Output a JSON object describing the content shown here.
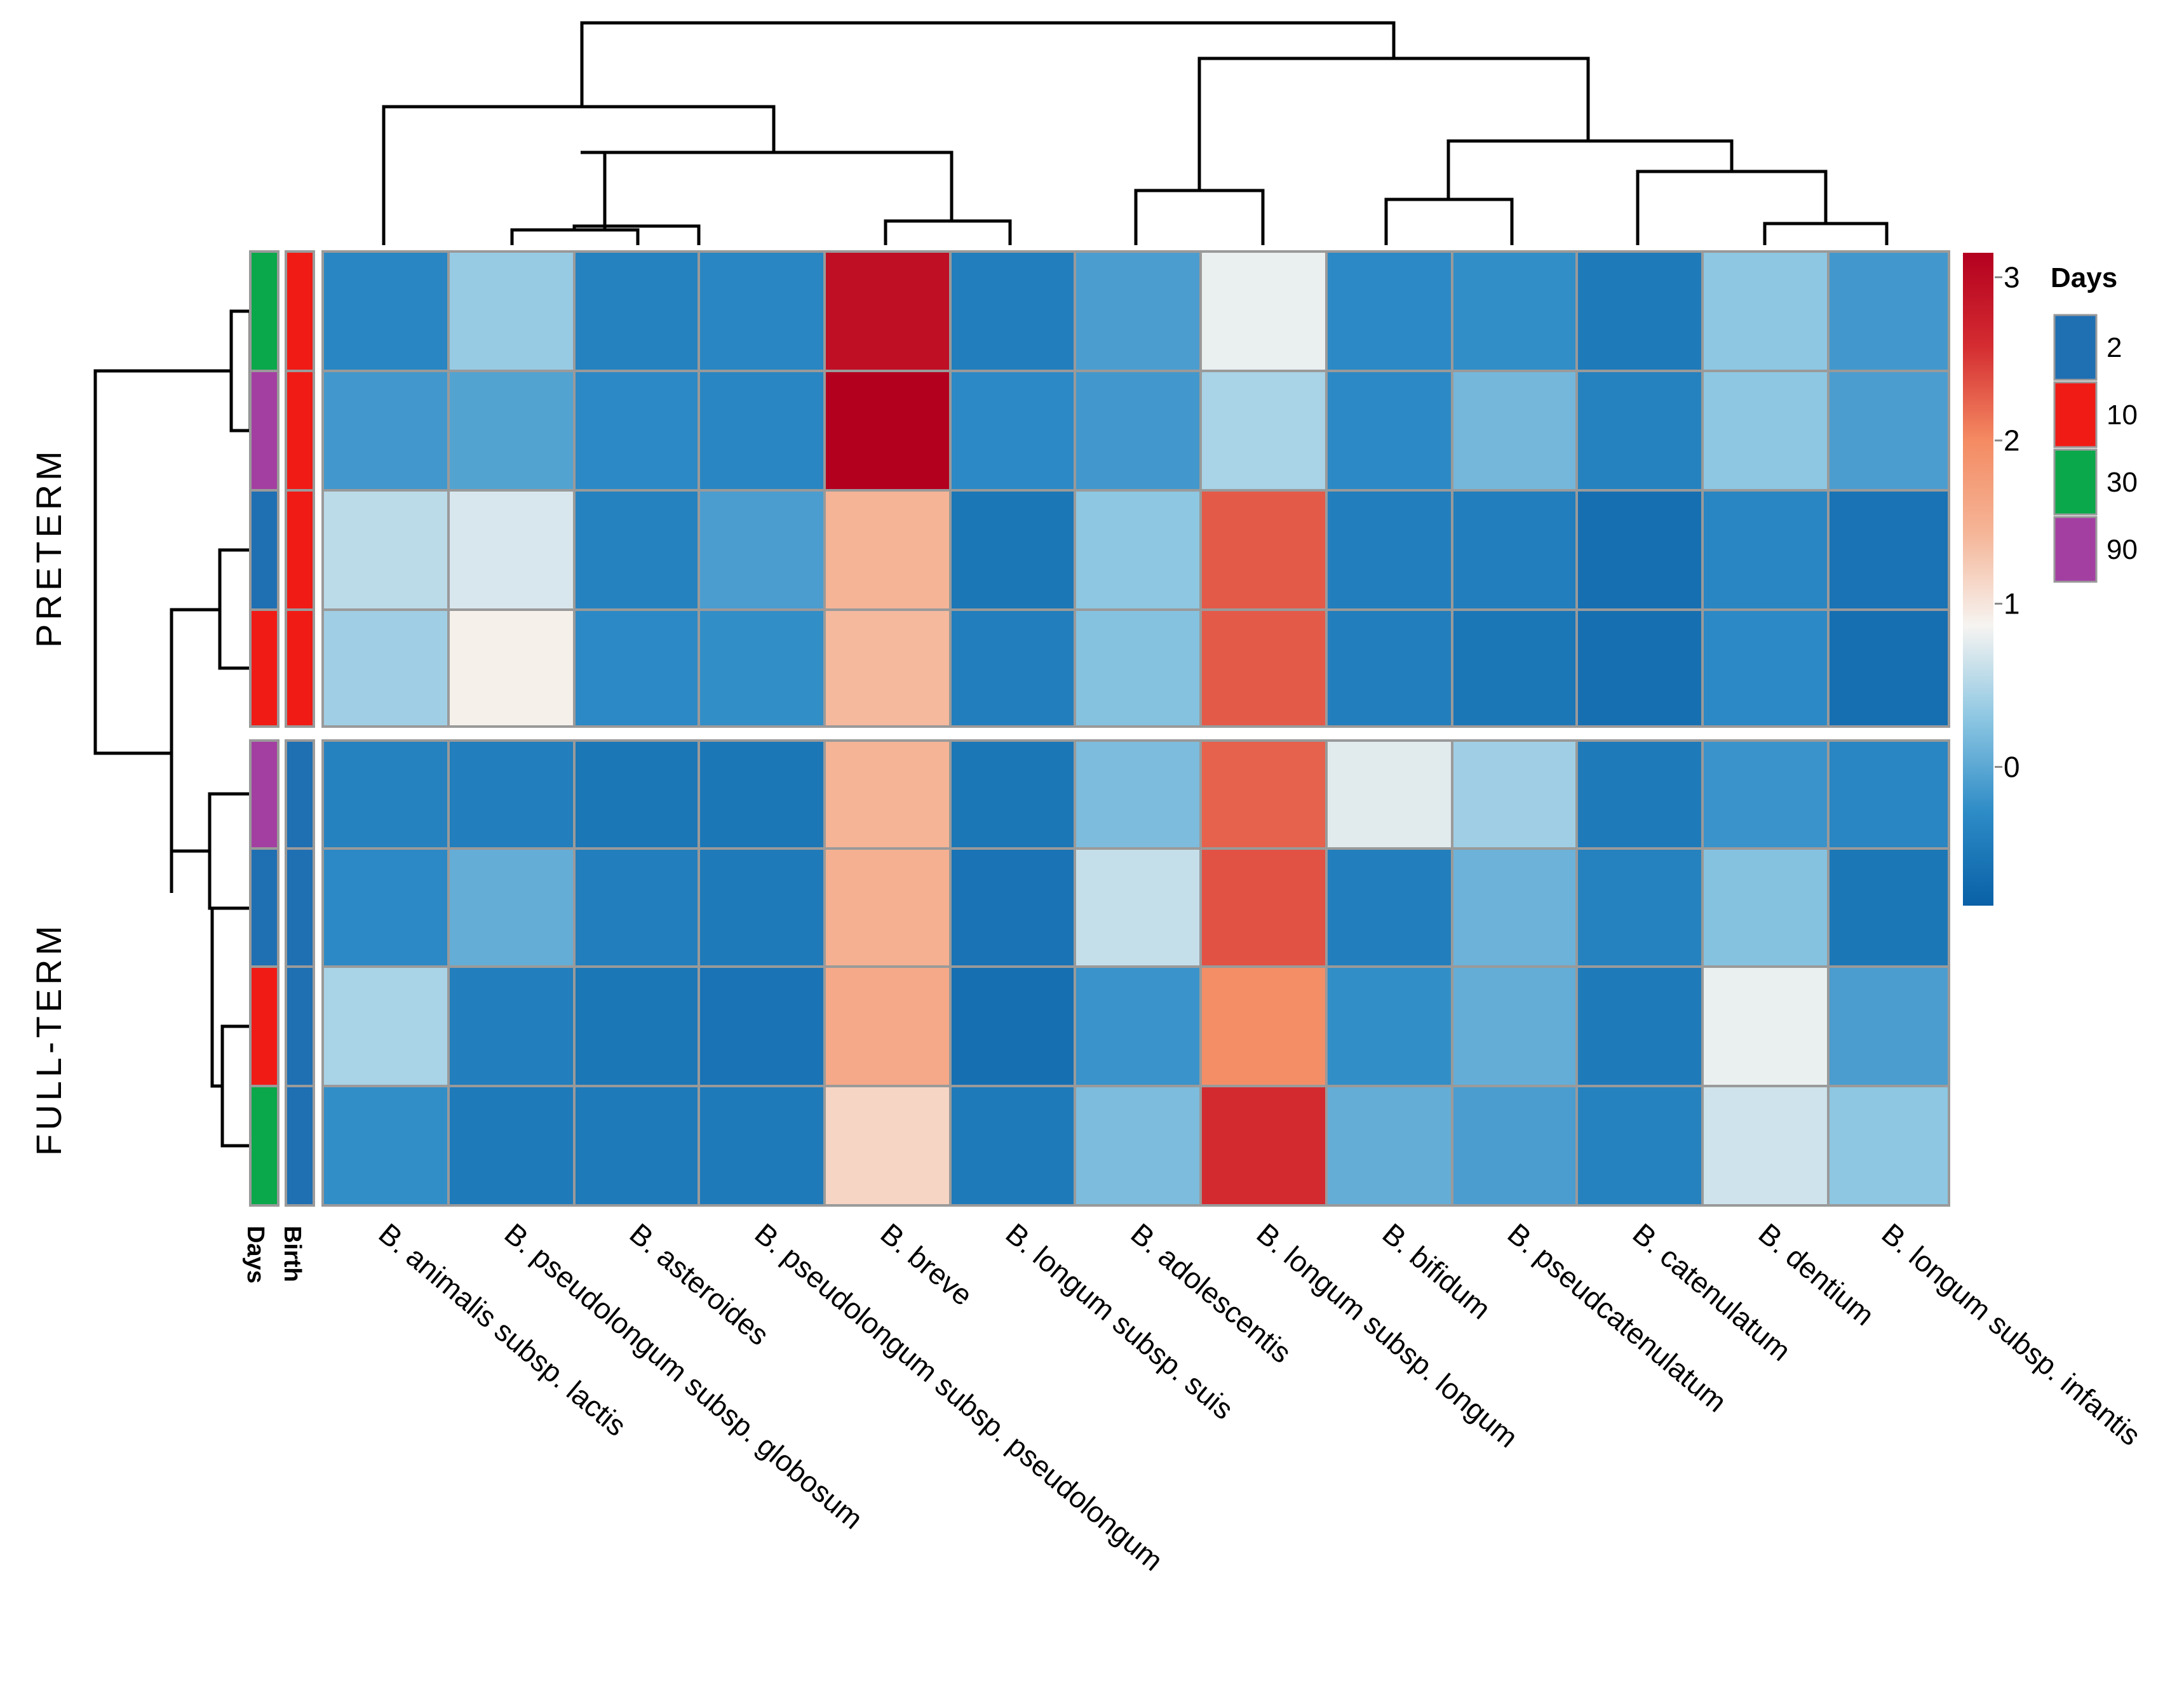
{
  "chart_data": {
    "type": "heatmap",
    "title": "",
    "columns": [
      "B. animalis subsp. lactis",
      "B. pseudolongum subsp. globosum",
      "B. asteroides",
      "B. pseudolongum subsp. pseudolongum",
      "B. breve",
      "B. longum subsp. suis",
      "B. adolescentis",
      "B. longum subsp. longum",
      "B. bifidum",
      "B. pseudcatenulatum",
      "B. catenulatum",
      "B. dentium",
      "B. longum subsp. infantis"
    ],
    "row_groups": [
      {
        "label": "PRETERM",
        "rows": [
          0,
          1,
          2,
          3
        ]
      },
      {
        "label": "FULL-TERM",
        "rows": [
          4,
          5,
          6,
          7
        ]
      }
    ],
    "rows": [
      {
        "days": "30",
        "birth": "10",
        "values": [
          -0.35,
          0.35,
          -0.4,
          -0.35,
          2.95,
          -0.45,
          -0.1,
          0.8,
          -0.3,
          -0.25,
          -0.5,
          0.3,
          -0.15
        ]
      },
      {
        "days": "90",
        "birth": "10",
        "values": [
          -0.15,
          -0.05,
          -0.3,
          -0.35,
          3.15,
          -0.3,
          -0.15,
          0.45,
          -0.3,
          0.15,
          -0.4,
          0.3,
          -0.1
        ]
      },
      {
        "days": "2",
        "birth": "10",
        "values": [
          0.55,
          0.7,
          -0.4,
          -0.1,
          1.45,
          -0.55,
          0.3,
          2.3,
          -0.45,
          -0.45,
          -0.65,
          -0.35,
          -0.6
        ]
      },
      {
        "days": "10",
        "birth": "10",
        "values": [
          0.4,
          0.9,
          -0.3,
          -0.25,
          1.4,
          -0.45,
          0.25,
          2.3,
          -0.45,
          -0.55,
          -0.65,
          -0.3,
          -0.65
        ]
      },
      {
        "days": "90",
        "birth": "2",
        "values": [
          -0.4,
          -0.45,
          -0.55,
          -0.55,
          1.45,
          -0.55,
          0.2,
          2.25,
          0.75,
          0.4,
          -0.5,
          -0.2,
          -0.35
        ]
      },
      {
        "days": "2",
        "birth": "2",
        "values": [
          -0.3,
          0.05,
          -0.45,
          -0.5,
          1.5,
          -0.6,
          0.6,
          2.35,
          -0.45,
          0.1,
          -0.4,
          0.25,
          -0.55
        ]
      },
      {
        "days": "10",
        "birth": "2",
        "values": [
          0.45,
          -0.45,
          -0.55,
          -0.6,
          1.6,
          -0.65,
          -0.2,
          1.95,
          -0.25,
          0.05,
          -0.5,
          0.8,
          -0.1
        ]
      },
      {
        "days": "30",
        "birth": "2",
        "values": [
          -0.25,
          -0.5,
          -0.5,
          -0.5,
          1.15,
          -0.5,
          0.2,
          2.6,
          0.05,
          -0.1,
          -0.4,
          0.65,
          0.3
        ]
      }
    ],
    "color_scale": {
      "ticks": [
        "3",
        "2",
        "1",
        "0"
      ],
      "tick_values": [
        3,
        2,
        1,
        0
      ],
      "range": [
        -0.85,
        3.15
      ],
      "colors": [
        "#0960a6",
        "#2d8bc6",
        "#8cc6e2",
        "#f6f4f1",
        "#f5b597",
        "#f48a62",
        "#d42c31",
        "#b4001f"
      ]
    },
    "annotations": {
      "days_label": "Days",
      "birth_label": "Birth"
    },
    "legend": {
      "title": "Days",
      "items": [
        {
          "label": "2",
          "color": "#1f6fb3"
        },
        {
          "label": "10",
          "color": "#f11b16"
        },
        {
          "label": "30",
          "color": "#0aa84a"
        },
        {
          "label": "90",
          "color": "#a43fa2"
        }
      ]
    }
  }
}
